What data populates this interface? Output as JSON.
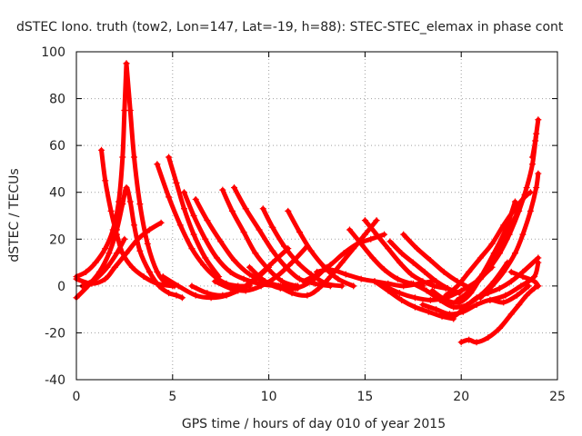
{
  "chart_data": {
    "type": "scatter",
    "title": "dSTEC Iono. truth (tow2, Lon=147, Lat=-19, h=88): STEC-STEC_elemax in phase cont",
    "xlabel": "GPS time / hours of day 010 of year 2015",
    "ylabel": "dSTEC  / TECUs",
    "xlim": [
      0,
      25
    ],
    "ylim": [
      -40,
      100
    ],
    "x_ticks": [
      0,
      5,
      10,
      15,
      20,
      25
    ],
    "y_ticks": [
      -40,
      -20,
      0,
      20,
      40,
      60,
      80,
      100
    ],
    "grid": true,
    "series_color": "#ff0000",
    "marker": "plus",
    "series": [
      {
        "x": [
          0.0,
          0.6,
          1.2,
          1.7,
          2.1,
          2.4,
          2.6,
          2.8,
          3.0,
          3.3,
          3.8,
          4.3,
          4.8,
          5.2,
          5.5
        ],
        "values": [
          -5,
          0,
          6,
          14,
          24,
          35,
          42,
          36,
          26,
          15,
          6,
          0,
          -3,
          -4,
          -5
        ]
      },
      {
        "x": [
          0.0,
          0.5,
          1.0,
          1.5,
          1.9,
          2.2,
          2.4,
          2.5,
          2.6
        ],
        "values": [
          4,
          6,
          10,
          16,
          24,
          36,
          55,
          75,
          95
        ]
      },
      {
        "x": [
          2.6,
          2.8,
          3.0,
          3.3,
          3.7,
          4.2,
          4.7,
          5.1
        ],
        "values": [
          95,
          75,
          55,
          35,
          18,
          6,
          1,
          0
        ]
      },
      {
        "x": [
          1.3,
          1.5,
          1.8,
          2.1,
          2.4,
          2.9,
          3.5,
          4.2,
          5.0
        ],
        "values": [
          58,
          45,
          32,
          22,
          14,
          8,
          4,
          1,
          0
        ]
      },
      {
        "x": [
          0.0,
          0.8,
          1.5,
          2.0,
          2.6,
          3.2,
          3.8,
          4.4
        ],
        "values": [
          3,
          1,
          3,
          8,
          14,
          20,
          24,
          27
        ]
      },
      {
        "x": [
          0.3,
          1.0,
          1.6,
          2.1,
          2.5
        ],
        "values": [
          0,
          3,
          8,
          14,
          20
        ]
      },
      {
        "x": [
          4.2,
          4.8,
          5.4,
          6.0,
          6.6,
          7.2,
          7.8,
          8.4,
          9.0
        ],
        "values": [
          52,
          38,
          26,
          16,
          9,
          4,
          1,
          0,
          0
        ]
      },
      {
        "x": [
          4.8,
          5.2,
          5.6,
          6.1,
          6.7,
          7.4
        ],
        "values": [
          55,
          44,
          33,
          22,
          12,
          4
        ]
      },
      {
        "x": [
          5.6,
          6.1,
          6.7,
          7.3,
          8.0,
          8.7,
          9.5,
          10.5,
          11.5
        ],
        "values": [
          40,
          30,
          20,
          12,
          6,
          3,
          1,
          0,
          0
        ]
      },
      {
        "x": [
          6.2,
          6.8,
          7.5,
          8.2,
          9.0,
          9.8,
          10.6,
          11.5
        ],
        "values": [
          37,
          28,
          19,
          11,
          5,
          2,
          0,
          -1
        ]
      },
      {
        "x": [
          7.6,
          8.1,
          8.7,
          9.3,
          10.0,
          10.7,
          11.4
        ],
        "values": [
          41,
          32,
          23,
          14,
          7,
          2,
          0
        ]
      },
      {
        "x": [
          8.2,
          8.8,
          9.5,
          10.2,
          10.9,
          11.6,
          12.4,
          13.2
        ],
        "values": [
          42,
          33,
          24,
          15,
          8,
          3,
          1,
          0
        ]
      },
      {
        "x": [
          9.7,
          10.2,
          10.8,
          11.5,
          12.2,
          13.0,
          13.8
        ],
        "values": [
          33,
          25,
          17,
          10,
          5,
          1,
          0
        ]
      },
      {
        "x": [
          11.0,
          11.6,
          12.2,
          12.9,
          13.6,
          14.4
        ],
        "values": [
          32,
          23,
          15,
          8,
          3,
          0
        ]
      },
      {
        "x": [
          4.5,
          5.3,
          6.2,
          7.0,
          7.8,
          8.6,
          9.4,
          10.2,
          11.0
        ],
        "values": [
          4,
          0,
          -4,
          -5,
          -4,
          -1,
          4,
          10,
          16
        ]
      },
      {
        "x": [
          6.0,
          6.8,
          7.6,
          8.4,
          9.2,
          10.0
        ],
        "values": [
          0,
          -3,
          -4,
          -2,
          2,
          8
        ]
      },
      {
        "x": [
          7.2,
          8.0,
          8.8,
          9.6,
          10.4,
          11.2,
          12.0
        ],
        "values": [
          2,
          -1,
          -2,
          0,
          4,
          10,
          17
        ]
      },
      {
        "x": [
          9.0,
          9.8,
          10.6,
          11.4,
          12.2,
          13.0
        ],
        "values": [
          8,
          2,
          -1,
          -1,
          2,
          8
        ]
      },
      {
        "x": [
          10.5,
          11.2,
          12.0,
          12.6,
          13.2,
          13.8,
          14.4,
          15.0,
          15.6
        ],
        "values": [
          0,
          -3,
          -4,
          -1,
          4,
          10,
          16,
          22,
          28
        ]
      },
      {
        "x": [
          11.8,
          12.5,
          13.2,
          13.9,
          14.6,
          15.3,
          16.0
        ],
        "values": [
          2,
          5,
          9,
          14,
          18,
          20,
          22
        ]
      },
      {
        "x": [
          12.5,
          13.2,
          14.0,
          14.8,
          15.5,
          16.2,
          17.0,
          17.8,
          18.5
        ],
        "values": [
          6,
          7,
          5,
          3,
          2,
          1,
          0,
          1,
          2
        ]
      },
      {
        "x": [
          14.2,
          14.8,
          15.4,
          16.0,
          16.7,
          17.4,
          18.0
        ],
        "values": [
          24,
          18,
          12,
          7,
          3,
          1,
          0
        ]
      },
      {
        "x": [
          15.0,
          15.6,
          16.2,
          16.8,
          17.4,
          18.0,
          18.6,
          19.2
        ],
        "values": [
          28,
          22,
          16,
          10,
          5,
          2,
          0,
          -1
        ]
      },
      {
        "x": [
          16.3,
          16.9,
          17.5,
          18.1,
          18.7,
          19.3,
          19.9
        ],
        "values": [
          19,
          14,
          10,
          6,
          2,
          -1,
          -3
        ]
      },
      {
        "x": [
          17.0,
          17.7,
          18.4,
          19.1,
          19.8,
          20.5
        ],
        "values": [
          22,
          16,
          11,
          6,
          2,
          -1
        ]
      },
      {
        "x": [
          15.5,
          16.2,
          16.9,
          17.6,
          18.3,
          19.0,
          19.6
        ],
        "values": [
          2,
          -2,
          -6,
          -9,
          -11,
          -13,
          -14
        ]
      },
      {
        "x": [
          16.0,
          16.8,
          17.6,
          18.4,
          19.2,
          20.0,
          20.8,
          21.6
        ],
        "values": [
          0,
          -3,
          -5,
          -6,
          -5,
          -2,
          2,
          8
        ]
      },
      {
        "x": [
          17.5,
          18.2,
          18.9,
          19.6,
          20.3,
          21.0,
          21.7,
          22.4
        ],
        "values": [
          1,
          -2,
          -6,
          -9,
          -8,
          -4,
          2,
          10
        ]
      },
      {
        "x": [
          18.5,
          19.2,
          19.9,
          20.5,
          21.1,
          21.7,
          22.3,
          22.8
        ],
        "values": [
          -2,
          -6,
          -7,
          -3,
          5,
          14,
          24,
          36
        ]
      },
      {
        "x": [
          19.2,
          19.8,
          20.4,
          21.0,
          21.6,
          22.2,
          22.8,
          23.3,
          23.6
        ],
        "values": [
          -4,
          0,
          6,
          12,
          18,
          26,
          33,
          38,
          40
        ]
      },
      {
        "x": [
          19.8,
          20.3,
          20.8,
          21.4,
          21.9,
          22.4,
          22.9,
          23.3
        ],
        "values": [
          -6,
          -3,
          2,
          8,
          15,
          23,
          31,
          39
        ]
      },
      {
        "x": [
          20.5,
          21.0,
          21.5,
          22.0,
          22.5,
          23.0,
          23.4,
          23.7,
          23.9
        ],
        "values": [
          -1,
          3,
          8,
          14,
          22,
          32,
          42,
          52,
          65
        ]
      },
      {
        "x": [
          21.0,
          21.6,
          22.2,
          22.8,
          23.2,
          23.6,
          23.9,
          24.0
        ],
        "values": [
          -5,
          0,
          6,
          14,
          22,
          32,
          42,
          48
        ]
      },
      {
        "x": [
          23.7,
          23.85,
          24.0
        ],
        "values": [
          55,
          62,
          71
        ]
      },
      {
        "x": [
          20.0,
          20.4,
          20.8,
          21.4,
          22.0,
          22.6,
          23.0,
          23.4,
          23.8,
          24.0
        ],
        "values": [
          -24,
          -23,
          -24,
          -22,
          -18,
          -12,
          -8,
          -4,
          -1,
          0
        ]
      },
      {
        "x": [
          18.0,
          18.7,
          19.4,
          20.1,
          20.8,
          21.5,
          22.2,
          22.9,
          23.5
        ],
        "values": [
          -8,
          -10,
          -12,
          -11,
          -8,
          -6,
          -7,
          -4,
          0
        ]
      },
      {
        "x": [
          21.5,
          22.3,
          23.1,
          23.8,
          24.0
        ],
        "values": [
          -6,
          -4,
          0,
          4,
          10
        ]
      },
      {
        "x": [
          22.6,
          23.2,
          23.8,
          24.0
        ],
        "values": [
          6,
          4,
          2,
          0
        ]
      },
      {
        "x": [
          19.0,
          19.6,
          20.2,
          20.8,
          21.4,
          22.0,
          22.6,
          23.2,
          24.0
        ],
        "values": [
          -12,
          -13,
          -9,
          -5,
          -3,
          -1,
          2,
          6,
          12
        ]
      }
    ]
  }
}
